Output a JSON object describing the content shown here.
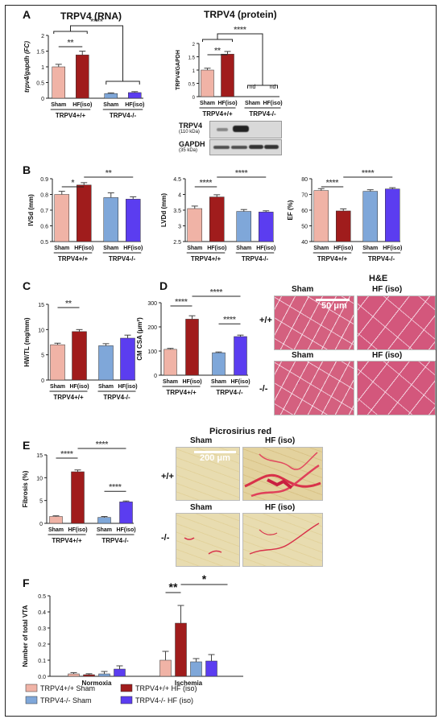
{
  "colors": {
    "sham_wt": "#f0b3a6",
    "hf_wt": "#a01c1c",
    "sham_ko": "#7fa7d9",
    "hf_ko": "#5b3df0",
    "err": "#555555"
  },
  "panels": {
    "A": {
      "letter": "A",
      "rna_title": "TRPV4 (RNA)",
      "protein_title": "TRPV4 (protein)",
      "blot_labels": {
        "trpv4": "TRPV4",
        "trpv4_kda": "(110 kDa)",
        "gapdh": "GAPDH",
        "gapdh_kda": "(35 kDa)"
      }
    },
    "B": {
      "letter": "B"
    },
    "C": {
      "letter": "C"
    },
    "D": {
      "letter": "D",
      "he_title": "H&E",
      "col_sham": "Sham",
      "col_hf": "HF (iso)",
      "row_wt": "+/+",
      "row_ko": "-/-",
      "scale": "50 μm"
    },
    "E": {
      "letter": "E",
      "pr_title": "Picrosirius red",
      "col_sham": "Sham",
      "col_hf": "HF (iso)",
      "row_wt": "+/+",
      "row_ko": "-/-",
      "scale": "200 μm"
    },
    "F": {
      "letter": "F"
    }
  },
  "common": {
    "sham": "Sham",
    "hf": "HF(iso)",
    "wt": "TRPV4+/+",
    "ko": "TRPV4-/-",
    "nd": "nd"
  },
  "chart_data": [
    {
      "id": "A1",
      "type": "bar",
      "ylabel": "trpv4/gapdh (FC)",
      "ylim": [
        0,
        2
      ],
      "yticks": [
        0,
        0.5,
        1.0,
        1.5,
        2.0
      ],
      "values": [
        1.0,
        1.38,
        0.15,
        0.18
      ],
      "errors": [
        0.08,
        0.12,
        0.02,
        0.03
      ],
      "sig": [
        {
          "a": 0,
          "b": 1,
          "text": "**"
        },
        {
          "a": 0,
          "b": 2,
          "text": "****",
          "bracket_group": true
        }
      ]
    },
    {
      "id": "A2",
      "type": "bar",
      "ylabel": "TRPV4/GAPDH",
      "ylim": [
        0,
        2
      ],
      "yticks": [
        0,
        0.5,
        1.0,
        1.5,
        2.0
      ],
      "values": [
        1.0,
        1.6,
        0,
        0
      ],
      "errors": [
        0.07,
        0.1,
        0,
        0
      ],
      "nd": [
        false,
        false,
        true,
        true
      ],
      "sig": [
        {
          "a": 0,
          "b": 1,
          "text": "**"
        },
        {
          "a": 0,
          "b": 2,
          "text": "****",
          "bracket_group": true
        }
      ]
    },
    {
      "id": "B1",
      "type": "bar",
      "ylabel": "IVSd (mm)",
      "ylim": [
        0.5,
        0.9
      ],
      "yticks": [
        0.5,
        0.6,
        0.7,
        0.8,
        0.9
      ],
      "values": [
        0.8,
        0.86,
        0.78,
        0.77
      ],
      "errors": [
        0.02,
        0.015,
        0.03,
        0.015
      ],
      "sig": [
        {
          "a": 0,
          "b": 1,
          "text": "*"
        },
        {
          "a": 1,
          "b": 3,
          "text": "**"
        }
      ]
    },
    {
      "id": "B2",
      "type": "bar",
      "ylabel": "LVDd (mm)",
      "ylim": [
        2.5,
        4.5
      ],
      "yticks": [
        2.5,
        3.0,
        3.5,
        4.0,
        4.5
      ],
      "values": [
        3.55,
        3.92,
        3.46,
        3.44
      ],
      "errors": [
        0.08,
        0.07,
        0.06,
        0.04
      ],
      "sig": [
        {
          "a": 0,
          "b": 1,
          "text": "****"
        },
        {
          "a": 1,
          "b": 3,
          "text": "****"
        }
      ]
    },
    {
      "id": "B3",
      "type": "bar",
      "ylabel": "EF (%)",
      "ylim": [
        40,
        80
      ],
      "yticks": [
        40,
        50,
        60,
        70,
        80
      ],
      "values": [
        72.5,
        59.5,
        72.0,
        73.5
      ],
      "errors": [
        1.2,
        1.3,
        1.0,
        0.8
      ],
      "sig": [
        {
          "a": 0,
          "b": 1,
          "text": "****"
        },
        {
          "a": 1,
          "b": 3,
          "text": "****"
        }
      ]
    },
    {
      "id": "C",
      "type": "bar",
      "ylabel": "HW/TL (mg/mm)",
      "ylim": [
        0,
        15
      ],
      "yticks": [
        0,
        5,
        10,
        15
      ],
      "values": [
        7.0,
        9.6,
        6.8,
        8.3
      ],
      "errors": [
        0.3,
        0.4,
        0.4,
        0.6
      ],
      "sig": [
        {
          "a": 0,
          "b": 1,
          "text": "**"
        }
      ]
    },
    {
      "id": "D",
      "type": "bar",
      "ylabel": "CM CSA (μm²)",
      "ylim": [
        0,
        300
      ],
      "yticks": [
        0,
        100,
        200,
        300
      ],
      "values": [
        107,
        232,
        93,
        160
      ],
      "errors": [
        4,
        14,
        3,
        6
      ],
      "sig": [
        {
          "a": 0,
          "b": 1,
          "text": "****"
        },
        {
          "a": 1,
          "b": 3,
          "text": "****"
        },
        {
          "a": 2,
          "b": 3,
          "text": "****"
        }
      ]
    },
    {
      "id": "E",
      "type": "bar",
      "ylabel": "Fibrosis (%)",
      "ylim": [
        0,
        15
      ],
      "yticks": [
        0,
        5,
        10,
        15
      ],
      "values": [
        1.5,
        11.3,
        1.3,
        4.7
      ],
      "errors": [
        0.15,
        0.4,
        0.2,
        0.2
      ],
      "sig": [
        {
          "a": 0,
          "b": 1,
          "text": "****"
        },
        {
          "a": 1,
          "b": 3,
          "text": "****"
        },
        {
          "a": 2,
          "b": 3,
          "text": "****"
        }
      ]
    },
    {
      "id": "F",
      "type": "bar",
      "ylabel": "Number of total VTA",
      "ylim": [
        0,
        0.5
      ],
      "yticks": [
        0.0,
        0.1,
        0.2,
        0.3,
        0.4,
        0.5
      ],
      "categories": [
        "Normoxia",
        "Ischemia"
      ],
      "series": [
        {
          "name": "TRPV4+/+ Sham",
          "values": [
            0.015,
            0.1
          ],
          "errors": [
            0.008,
            0.055
          ]
        },
        {
          "name": "TRPV4+/+ HF (iso)",
          "values": [
            0.01,
            0.33
          ],
          "errors": [
            0.006,
            0.11
          ]
        },
        {
          "name": "TRPV4-/- Sham",
          "values": [
            0.015,
            0.09
          ],
          "errors": [
            0.015,
            0.02
          ]
        },
        {
          "name": "TRPV4-/- HF (iso)",
          "values": [
            0.045,
            0.095
          ],
          "errors": [
            0.02,
            0.04
          ]
        }
      ],
      "sig": [
        {
          "text": "**"
        },
        {
          "text": "*"
        }
      ]
    }
  ]
}
